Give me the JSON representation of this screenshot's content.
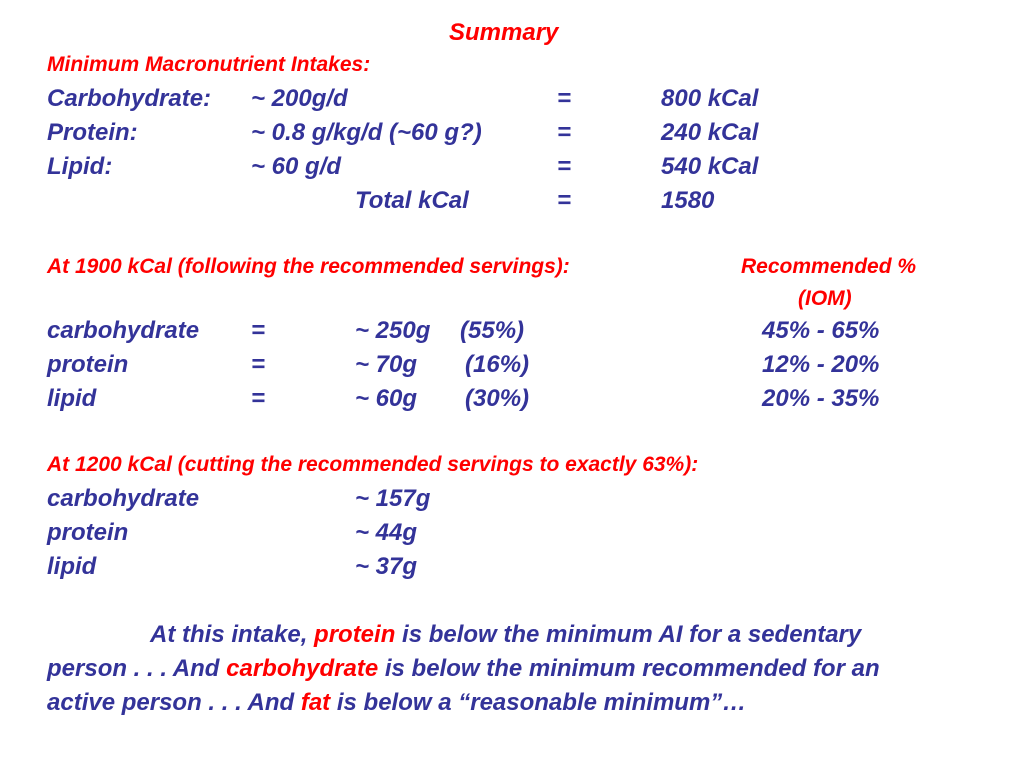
{
  "colors": {
    "heading_red": "#ff0000",
    "body_blue": "#333399",
    "background": "#ffffff"
  },
  "summary": {
    "title": "Summary",
    "min_heading": "Minimum Macronutrient Intakes:",
    "min_rows": [
      {
        "label": "Carbohydrate:",
        "amount": "~ 200g/d",
        "eq": "=",
        "kcal": "800 kCal"
      },
      {
        "label": "Protein:",
        "amount": "~ 0.8 g/kg/d (~60 g?)",
        "eq": "=",
        "kcal": "240 kCal"
      },
      {
        "label": "Lipid:",
        "amount": "~ 60 g/d",
        "eq": "=",
        "kcal": "540 kCal"
      }
    ],
    "total": {
      "label": "Total kCal",
      "eq": "=",
      "value": "1580"
    }
  },
  "at1900": {
    "heading": "At 1900 kCal (following the recommended servings):",
    "rec_header_line1": "Recommended %",
    "rec_header_line2": "(IOM)",
    "rows": [
      {
        "label": "carbohydrate",
        "eq": "=",
        "amount": "~ 250g",
        "pct": "(55%)",
        "rec": "45% - 65%"
      },
      {
        "label": "protein",
        "eq": "=",
        "amount": "~ 70g",
        "pct": "(16%)",
        "rec": "12% - 20%"
      },
      {
        "label": "lipid",
        "eq": "=",
        "amount": "~ 60g",
        "pct": "(30%)",
        "rec": "20% - 35%"
      }
    ]
  },
  "at1200": {
    "heading": "At 1200 kCal (cutting the recommended servings to exactly 63%):",
    "rows": [
      {
        "label": "carbohydrate",
        "amount": "~ 157g"
      },
      {
        "label": "protein",
        "amount": "~ 44g"
      },
      {
        "label": "lipid",
        "amount": "~ 37g"
      }
    ]
  },
  "conclusion": {
    "part1": "At this intake, ",
    "hl1": "protein",
    "part2": " is below the minimum AI for a sedentary person . . . And ",
    "hl2": "carbohydrate",
    "part3": " is below the minimum recommended for an active person . . . And ",
    "hl3": "fat",
    "part4": " is below a “reasonable minimum”…"
  }
}
